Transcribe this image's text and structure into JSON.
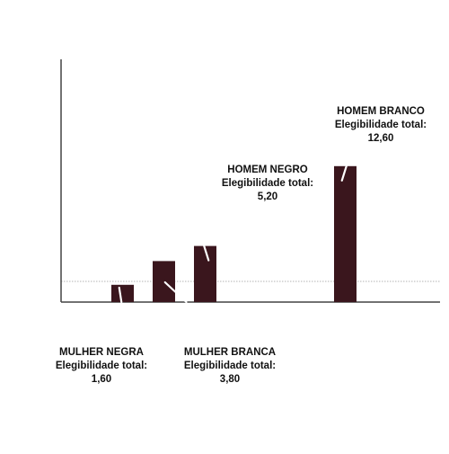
{
  "chart_data": {
    "type": "bar",
    "categories": [
      "MULHER NEGRA",
      "MULHER BRANCA",
      "HOMEM NEGRO",
      "HOMEM BRANCO"
    ],
    "values": [
      1.6,
      3.8,
      5.2,
      12.6
    ],
    "reference_line": 1.0,
    "ylim": [
      0,
      14
    ],
    "title": "",
    "xlabel": "",
    "ylabel": "",
    "grid": false,
    "legend": "none",
    "colors": {
      "bar": "#3a161d",
      "axis": "#444444",
      "reference_line": "#b3b3b3",
      "label": "#111111"
    },
    "annotations": [
      {
        "category": "MULHER NEGRA",
        "name": "MULHER NEGRA",
        "line2": "Elegibilidade total:",
        "value_text": "1,60"
      },
      {
        "category": "MULHER BRANCA",
        "name": "MULHER BRANCA",
        "line2": "Elegibilidade total:",
        "value_text": "3,80"
      },
      {
        "category": "HOMEM NEGRO",
        "name": "HOMEM NEGRO",
        "line2": "Elegibilidade total:",
        "value_text": "5,20"
      },
      {
        "category": "HOMEM BRANCO",
        "name": "HOMEM BRANCO",
        "line2": "Elegibilidade total:",
        "value_text": "12,60"
      }
    ]
  }
}
